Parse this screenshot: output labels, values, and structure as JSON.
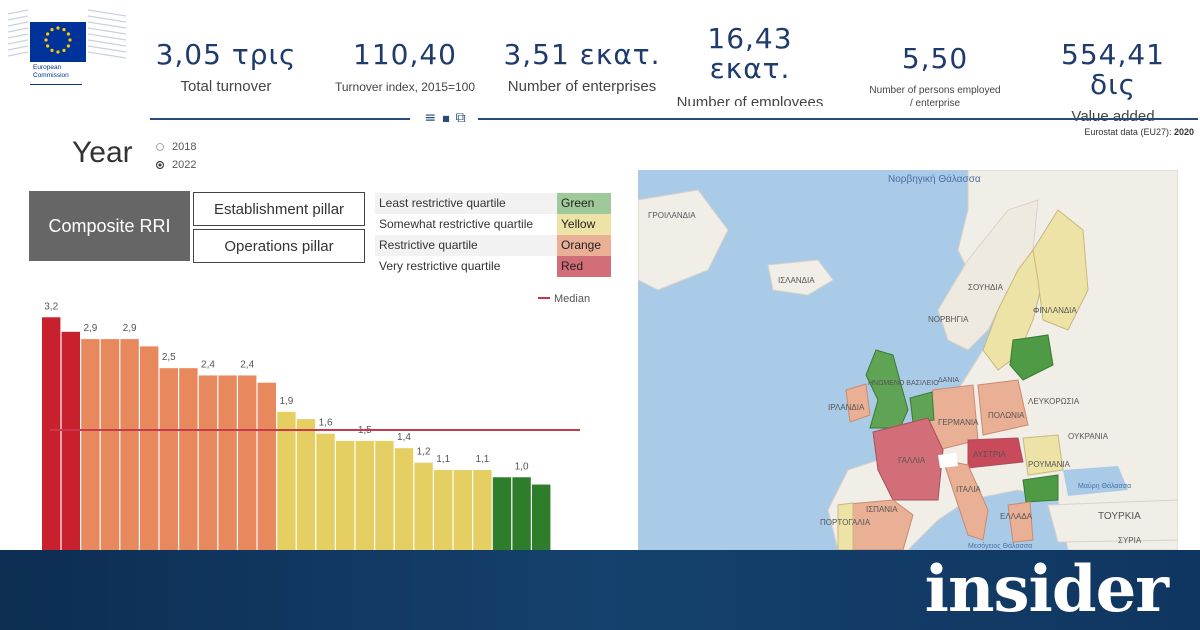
{
  "logo": {
    "caption_line1": "European",
    "caption_line2": "Commission"
  },
  "kpis": [
    {
      "value": "3,05 τρις",
      "label": "Total turnover"
    },
    {
      "value": "110,40",
      "label": "Turnover index, 2015=100"
    },
    {
      "value": "3,51 εκατ.",
      "label": "Number of enterprises"
    },
    {
      "value_line1": "16,43",
      "value_line2": "εκατ.",
      "label": "Number of employees"
    },
    {
      "value": "5,50",
      "label_line1": "Number of persons employed",
      "label_line2": "/ enterprise"
    },
    {
      "value": "554,41 δις",
      "label": "Value added"
    }
  ],
  "source": {
    "text": "Eurostat data (EU27):",
    "year": "2020"
  },
  "year_filter": {
    "title": "Year",
    "options": [
      "2018",
      "2022"
    ],
    "selected": "2022"
  },
  "pillars": {
    "main": "Composite RRI",
    "establishment": "Establishment pillar",
    "operations": "Operations pillar"
  },
  "legend": [
    {
      "name": "Least restrictive quartile",
      "color_name": "Green",
      "color": "#9fc99a"
    },
    {
      "name": "Somewhat restrictive quartile",
      "color_name": "Yellow",
      "color": "#ede3a6"
    },
    {
      "name": "Restrictive quartile",
      "color_name": "Orange",
      "color": "#eab096"
    },
    {
      "name": "Very restrictive quartile",
      "color_name": "Red",
      "color": "#d26e78"
    }
  ],
  "chart_data": {
    "type": "bar",
    "median_label": "Median",
    "median_value": 1.65,
    "ylim": [
      0,
      3.3
    ],
    "values": [
      3.2,
      3.0,
      2.9,
      2.9,
      2.9,
      2.8,
      2.5,
      2.5,
      2.4,
      2.4,
      2.4,
      2.3,
      1.9,
      1.8,
      1.6,
      1.5,
      1.5,
      1.5,
      1.4,
      1.2,
      1.1,
      1.1,
      1.1,
      1.0,
      1.0,
      0.9
    ],
    "labels": [
      "3,2",
      "",
      "2,9",
      "",
      "2,9",
      "",
      "2,5",
      "",
      "2,4",
      "",
      "2,4",
      "",
      "1,9",
      "",
      "1,6",
      "",
      "1,5",
      "",
      "1,4",
      "1,2",
      "1,1",
      "",
      "1,1",
      "",
      "1,0",
      ""
    ],
    "colors": [
      "red",
      "red",
      "orange",
      "orange",
      "orange",
      "orange",
      "orange",
      "orange",
      "orange",
      "orange",
      "orange",
      "orange",
      "yellow",
      "yellow",
      "yellow",
      "yellow",
      "yellow",
      "yellow",
      "yellow",
      "yellow",
      "yellow",
      "yellow",
      "yellow",
      "green",
      "green",
      "green"
    ],
    "palette": {
      "red": "#c9202e",
      "orange": "#e8895d",
      "yellow": "#e6cf62",
      "green": "#2e7d2a",
      "median": "#c8394a"
    }
  },
  "map": {
    "labels": [
      "Νορβηγική Θάλασσα",
      "ΓΡΟΙΛΑΝΔΙΑ",
      "ΙΣΛΑΝΔΙΑ",
      "ΣΟΥΗΔΙΑ",
      "ΝΟΡΒΗΓΙΑ",
      "ΦΙΝΛΑΝΔΙΑ",
      "ΗΝΩΜΕΝΟ ΒΑΣΙΛΕΙΟ",
      "ΙΡΛΑΝΔΙΑ",
      "ΓΕΡΜΑΝΙΑ",
      "ΠΟΛΩΝΙΑ",
      "ΛΕΥΚΟΡΩΣΙΑ",
      "ΟΥΚΡΑΝΙΑ",
      "ΓΑΛΛΙΑ",
      "ΑΥΣΤΡΙΑ",
      "ΡΟΥΜΑΝΙΑ",
      "ΙΤΑΛΙΑ",
      "ΙΣΠΑΝΙΑ",
      "ΠΟΡΤΟΓΑΛΙΑ",
      "ΕΛΛΑΔΑ",
      "ΤΟΥΡΚΙΑ",
      "ΣΥΡΙΑ",
      "Μαύρη Θάλασσα",
      "Μεσόγειος Θάλασσα",
      "ΔΑΝΙΑ"
    ]
  },
  "banner": {
    "brand": "insider"
  }
}
